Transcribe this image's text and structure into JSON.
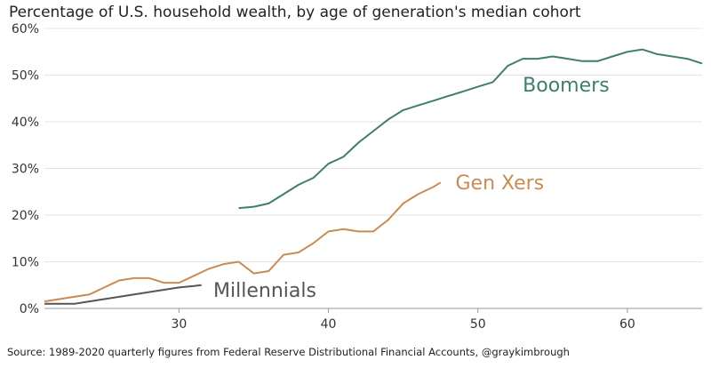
{
  "chart_data": {
    "type": "line",
    "title": "Percentage of U.S. household wealth, by age of generation's median cohort",
    "source": "Source: 1989-2020 quarterly figures from Federal Reserve Distributional Financial Accounts, @graykimbrough",
    "xlabel": "",
    "ylabel": "",
    "xlim": [
      21,
      65
    ],
    "ylim": [
      0,
      60
    ],
    "x_ticks": [
      30,
      40,
      50,
      60
    ],
    "x_tick_labels": [
      "30",
      "40",
      "50",
      "60"
    ],
    "y_ticks": [
      0,
      10,
      20,
      30,
      40,
      50,
      60
    ],
    "y_tick_labels": [
      "0%",
      "10%",
      "20%",
      "30%",
      "40%",
      "50%",
      "60%"
    ],
    "grid": "horizontal",
    "series": [
      {
        "name": "Boomers",
        "color": "#3e7d72",
        "x": [
          34,
          35,
          36,
          37,
          38,
          39,
          40,
          41,
          42,
          43,
          44,
          45,
          46,
          47,
          48,
          49,
          50,
          51,
          52,
          53,
          54,
          55,
          56,
          57,
          58,
          59,
          60,
          61,
          62,
          63,
          64,
          65
        ],
        "y": [
          21.5,
          21.8,
          22.5,
          24.5,
          26.5,
          28,
          31,
          32.5,
          35.5,
          38,
          40.5,
          42.5,
          43.5,
          44.5,
          45.5,
          46.5,
          47.5,
          48.5,
          52,
          53.5,
          53.5,
          54,
          53.5,
          53,
          53,
          54,
          55,
          55.5,
          54.5,
          54,
          53.5,
          52.5
        ]
      },
      {
        "name": "Gen Xers",
        "color": "#c98b55",
        "x": [
          21,
          22,
          23,
          24,
          25,
          26,
          27,
          28,
          29,
          30,
          31,
          32,
          33,
          34,
          35,
          36,
          37,
          38,
          39,
          40,
          41,
          42,
          43,
          44,
          45,
          46,
          47,
          47.5
        ],
        "y": [
          1.5,
          2,
          2.5,
          3,
          4.5,
          6,
          6.5,
          6.5,
          5.5,
          5.5,
          7,
          8.5,
          9.5,
          10,
          7.5,
          8,
          11.5,
          12,
          14,
          16.5,
          17,
          16.5,
          16.5,
          19,
          22.5,
          24.5,
          26,
          27
        ]
      },
      {
        "name": "Millennials",
        "color": "#555555",
        "x": [
          21,
          22,
          23,
          24,
          25,
          26,
          27,
          28,
          29,
          30,
          31,
          31.5
        ],
        "y": [
          1,
          1,
          1,
          1.5,
          2,
          2.5,
          3,
          3.5,
          4,
          4.5,
          4.8,
          5
        ]
      }
    ],
    "annotations": [
      "Boomers",
      "Gen Xers",
      "Millennials"
    ]
  }
}
